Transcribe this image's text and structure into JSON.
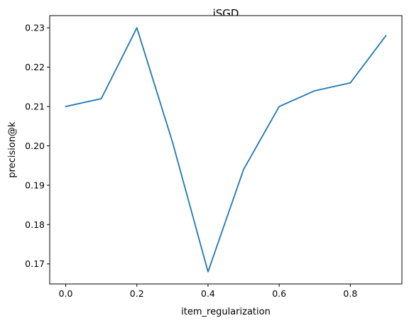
{
  "chart_data": {
    "type": "line",
    "title": "iSGD",
    "xlabel": "item_regularization",
    "ylabel": "precision@k",
    "xlim": [
      -0.045,
      0.945
    ],
    "ylim": [
      0.1649,
      0.2331
    ],
    "xticks": [
      0.0,
      0.2,
      0.4,
      0.6,
      0.8
    ],
    "xtick_labels": [
      "0.0",
      "0.2",
      "0.4",
      "0.6",
      "0.8"
    ],
    "yticks": [
      0.17,
      0.18,
      0.19,
      0.2,
      0.21,
      0.22,
      0.23
    ],
    "ytick_labels": [
      "0.17",
      "0.18",
      "0.19",
      "0.20",
      "0.21",
      "0.22",
      "0.23"
    ],
    "grid": false,
    "series": [
      {
        "color": "#1f77b4",
        "x": [
          0.0,
          0.1,
          0.2,
          0.3,
          0.4,
          0.5,
          0.6,
          0.7,
          0.8,
          0.9
        ],
        "y": [
          0.21,
          0.212,
          0.23,
          0.201,
          0.168,
          0.194,
          0.21,
          0.214,
          0.216,
          0.228
        ]
      }
    ]
  }
}
